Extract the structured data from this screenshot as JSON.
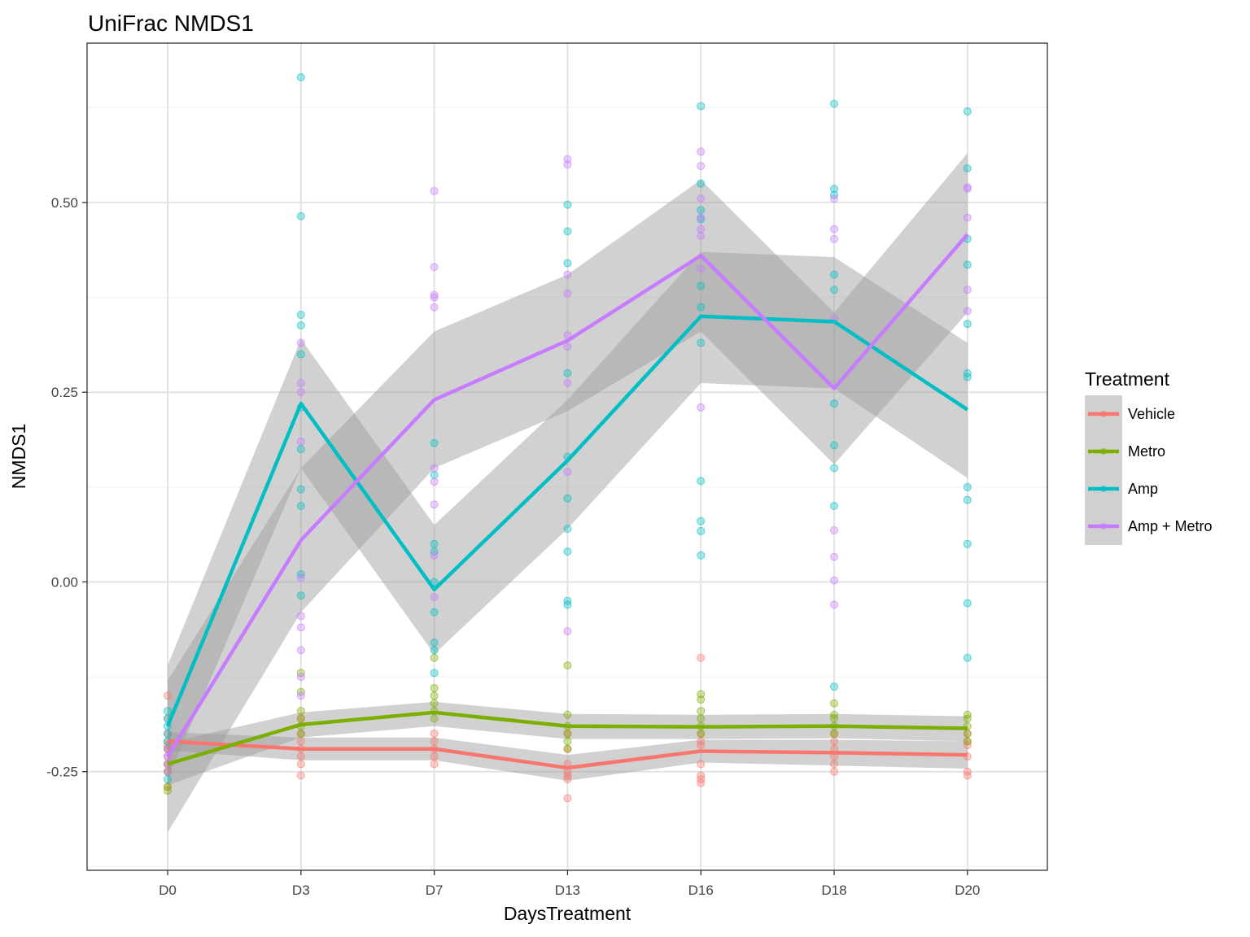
{
  "chart_data": {
    "type": "line",
    "title": "UniFrac NMDS1",
    "xlabel": "DaysTreatment",
    "ylabel": "NMDS1",
    "categories": [
      "D0",
      "D3",
      "D7",
      "D13",
      "D16",
      "D18",
      "D20"
    ],
    "ylim": [
      -0.38,
      0.71
    ],
    "yticks": [
      -0.25,
      0.0,
      0.25,
      0.5
    ],
    "ytick_labels": [
      "-0.25",
      "0.00",
      "0.25",
      "0.50"
    ],
    "grid": true,
    "legend": {
      "title": "Treatment",
      "position": "right"
    },
    "series": [
      {
        "name": "Vehicle",
        "color": "#F8766D",
        "values": [
          -0.21,
          -0.22,
          -0.22,
          -0.245,
          -0.223,
          -0.225,
          -0.228
        ],
        "band": [
          [
            -0.222,
            -0.198
          ],
          [
            -0.235,
            -0.205
          ],
          [
            -0.235,
            -0.205
          ],
          [
            -0.262,
            -0.228
          ],
          [
            -0.238,
            -0.208
          ],
          [
            -0.242,
            -0.208
          ],
          [
            -0.246,
            -0.21
          ]
        ],
        "points": [
          [
            -0.15,
            -0.18,
            -0.2,
            -0.21,
            -0.215,
            -0.22,
            -0.23,
            -0.24,
            -0.25,
            -0.27
          ],
          [
            -0.18,
            -0.2,
            -0.21,
            -0.22,
            -0.23,
            -0.24,
            -0.255
          ],
          [
            -0.2,
            -0.21,
            -0.22,
            -0.23,
            -0.24
          ],
          [
            -0.2,
            -0.22,
            -0.24,
            -0.25,
            -0.255,
            -0.26,
            -0.285
          ],
          [
            -0.1,
            -0.2,
            -0.21,
            -0.215,
            -0.24,
            -0.255,
            -0.26,
            -0.265
          ],
          [
            -0.2,
            -0.21,
            -0.22,
            -0.23,
            -0.24,
            -0.25
          ],
          [
            -0.2,
            -0.21,
            -0.215,
            -0.23,
            -0.25,
            -0.255
          ]
        ]
      },
      {
        "name": "Metro",
        "color": "#7CAE00",
        "values": [
          -0.24,
          -0.188,
          -0.172,
          -0.19,
          -0.191,
          -0.19,
          -0.193
        ],
        "band": [
          [
            -0.268,
            -0.212
          ],
          [
            -0.205,
            -0.172
          ],
          [
            -0.19,
            -0.158
          ],
          [
            -0.207,
            -0.174
          ],
          [
            -0.207,
            -0.175
          ],
          [
            -0.206,
            -0.174
          ],
          [
            -0.21,
            -0.177
          ]
        ],
        "points": [
          [
            -0.22,
            -0.24,
            -0.25,
            -0.27,
            -0.275
          ],
          [
            -0.12,
            -0.145,
            -0.17,
            -0.18,
            -0.19,
            -0.2
          ],
          [
            -0.1,
            -0.14,
            -0.15,
            -0.16,
            -0.17,
            -0.18
          ],
          [
            -0.11,
            -0.175,
            -0.19,
            -0.2,
            -0.21,
            -0.22
          ],
          [
            -0.148,
            -0.155,
            -0.17,
            -0.18,
            -0.19,
            -0.2
          ],
          [
            -0.16,
            -0.175,
            -0.18,
            -0.19,
            -0.2
          ],
          [
            -0.175,
            -0.18,
            -0.19,
            -0.2,
            -0.21
          ]
        ]
      },
      {
        "name": "Amp",
        "color": "#00BFC4",
        "values": [
          -0.19,
          0.235,
          -0.01,
          0.16,
          0.35,
          0.343,
          0.227
        ],
        "band": [
          [
            -0.26,
            -0.11
          ],
          [
            0.15,
            0.32
          ],
          [
            -0.095,
            0.075
          ],
          [
            0.07,
            0.24
          ],
          [
            0.262,
            0.435
          ],
          [
            0.255,
            0.428
          ],
          [
            0.137,
            0.315
          ]
        ],
        "points": [
          [
            -0.17,
            -0.18,
            -0.19,
            -0.2,
            -0.21,
            -0.26
          ],
          [
            0.665,
            0.482,
            0.352,
            0.338,
            0.3,
            0.23,
            0.175,
            0.122,
            0.1,
            0.01,
            -0.018
          ],
          [
            0.183,
            0.141,
            0.05,
            0.04,
            0.0,
            -0.04,
            -0.08,
            -0.09,
            -0.12
          ],
          [
            0.497,
            0.462,
            0.42,
            0.275,
            0.165,
            0.11,
            0.07,
            0.04,
            -0.025,
            -0.03
          ],
          [
            0.627,
            0.525,
            0.49,
            0.478,
            0.39,
            0.362,
            0.315,
            0.133,
            0.08,
            0.067,
            0.035
          ],
          [
            0.63,
            0.518,
            0.51,
            0.405,
            0.385,
            0.235,
            0.18,
            0.15,
            0.1,
            -0.138
          ],
          [
            0.62,
            0.545,
            0.452,
            0.418,
            0.34,
            0.275,
            0.27,
            0.125,
            0.108,
            0.05,
            -0.028,
            -0.1
          ]
        ]
      },
      {
        "name": "Amp + Metro",
        "color": "#C77CFF",
        "values": [
          -0.23,
          0.055,
          0.24,
          0.318,
          0.43,
          0.255,
          0.458
        ],
        "band": [
          [
            -0.33,
            -0.13
          ],
          [
            -0.04,
            0.15
          ],
          [
            0.15,
            0.33
          ],
          [
            0.225,
            0.405
          ],
          [
            0.33,
            0.53
          ],
          [
            0.155,
            0.355
          ],
          [
            0.355,
            0.565
          ]
        ],
        "points": [
          [
            -0.22,
            -0.23,
            -0.24,
            -0.25
          ],
          [
            0.315,
            0.262,
            0.25,
            0.185,
            0.005,
            -0.045,
            -0.06,
            -0.09,
            -0.125,
            -0.15
          ],
          [
            0.515,
            0.415,
            0.378,
            0.375,
            0.362,
            0.15,
            0.132,
            0.102,
            0.035,
            -0.02
          ],
          [
            0.557,
            0.55,
            0.405,
            0.38,
            0.325,
            0.31,
            0.262,
            0.145,
            -0.065
          ],
          [
            0.567,
            0.548,
            0.505,
            0.48,
            0.465,
            0.456,
            0.413,
            0.23
          ],
          [
            0.505,
            0.465,
            0.452,
            0.347,
            0.068,
            0.033,
            0.002,
            -0.03
          ],
          [
            0.52,
            0.518,
            0.48,
            0.385,
            0.357
          ]
        ]
      }
    ]
  }
}
